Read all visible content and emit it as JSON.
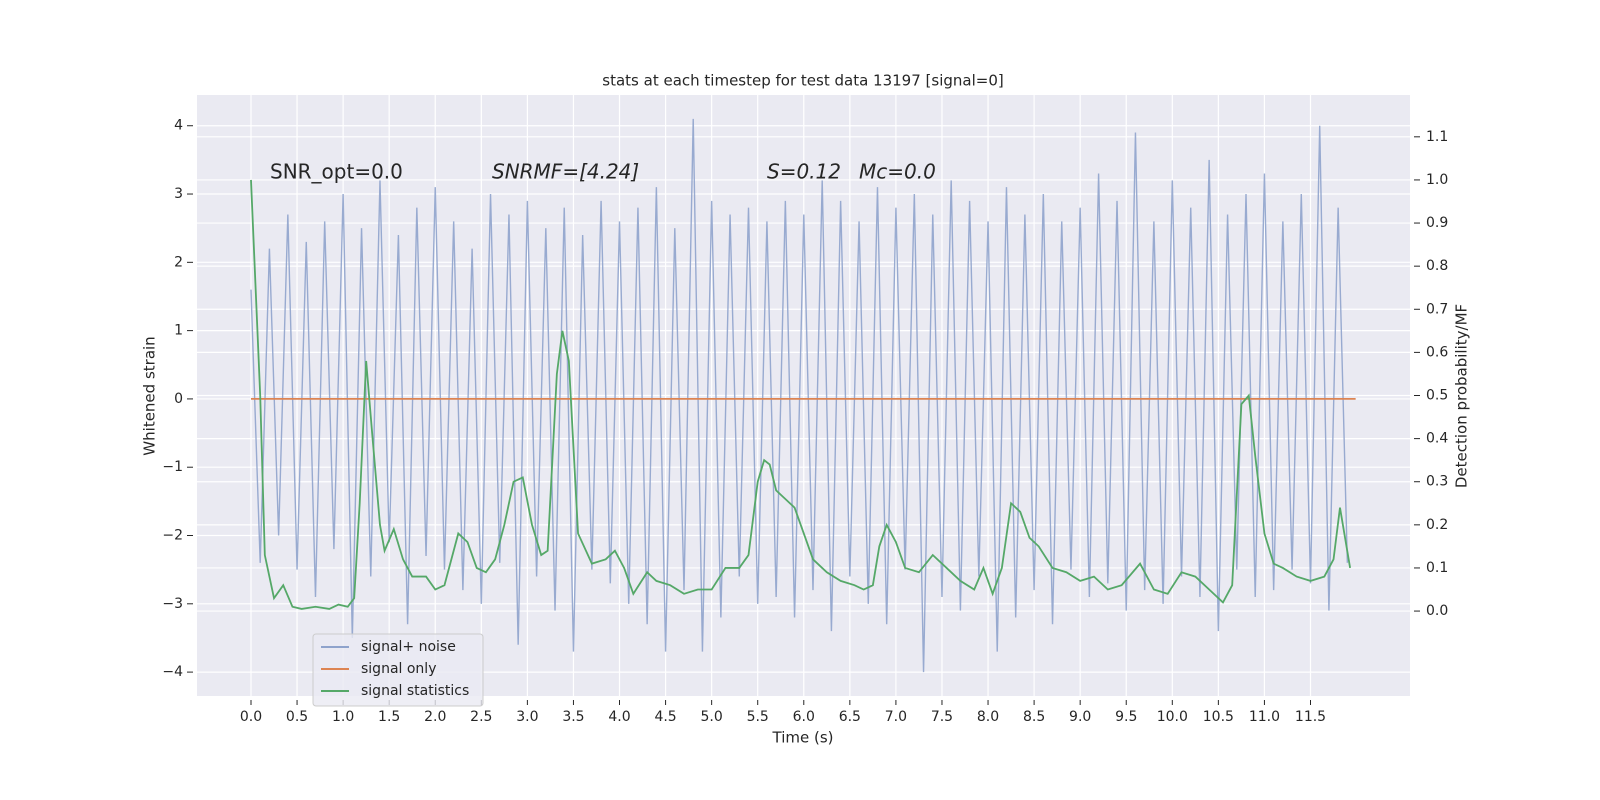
{
  "chart_data": {
    "type": "line",
    "title": "stats at each timestep for test data 13197 [signal=0]",
    "x_label": "Time (s)",
    "y_label": "Whitened strain",
    "y2_label": "Detection probability/MF",
    "annotations": [
      "SNR_opt=0.0",
      "SNRMF=[4.24]",
      "S=0.12",
      "Mc=0.0"
    ],
    "xlim": [
      -0.586,
      12.58
    ],
    "ylim": [
      -4.35,
      4.45
    ],
    "y2lim": [
      -0.197,
      1.197
    ],
    "xticks": [
      {
        "value": 0,
        "label": "0.0"
      },
      {
        "value": 0.5,
        "label": "0.5"
      },
      {
        "value": 1,
        "label": "1.0"
      },
      {
        "value": 1.5,
        "label": "1.5"
      },
      {
        "value": 2,
        "label": "2.0"
      },
      {
        "value": 2.5,
        "label": "2.5"
      },
      {
        "value": 3,
        "label": "3.0"
      },
      {
        "value": 3.5,
        "label": "3.5"
      },
      {
        "value": 4,
        "label": "4.0"
      },
      {
        "value": 4.5,
        "label": "4.5"
      },
      {
        "value": 5,
        "label": "5.0"
      },
      {
        "value": 5.5,
        "label": "5.5"
      },
      {
        "value": 6,
        "label": "6.0"
      },
      {
        "value": 6.5,
        "label": "6.5"
      },
      {
        "value": 7,
        "label": "7.0"
      },
      {
        "value": 7.5,
        "label": "7.5"
      },
      {
        "value": 8,
        "label": "8.0"
      },
      {
        "value": 8.5,
        "label": "8.5"
      },
      {
        "value": 9,
        "label": "9.0"
      },
      {
        "value": 9.5,
        "label": "9.5"
      },
      {
        "value": 10,
        "label": "10.0"
      },
      {
        "value": 10.5,
        "label": "10.5"
      },
      {
        "value": 11,
        "label": "11.0"
      },
      {
        "value": 11.5,
        "label": "11.5"
      }
    ],
    "yticks": [
      {
        "value": -4,
        "label": "−4"
      },
      {
        "value": -3,
        "label": "−3"
      },
      {
        "value": -2,
        "label": "−2"
      },
      {
        "value": -1,
        "label": "−1"
      },
      0,
      1,
      2,
      3,
      4
    ],
    "y2ticks": [
      {
        "value": 0,
        "label": "0.0"
      },
      {
        "value": 0.1,
        "label": "0.1"
      },
      {
        "value": 0.2,
        "label": "0.2"
      },
      {
        "value": 0.3,
        "label": "0.3"
      },
      {
        "value": 0.4,
        "label": "0.4"
      },
      {
        "value": 0.5,
        "label": "0.5"
      },
      {
        "value": 0.6,
        "label": "0.6"
      },
      {
        "value": 0.7,
        "label": "0.7"
      },
      {
        "value": 0.8,
        "label": "0.8"
      },
      {
        "value": 0.9,
        "label": "0.9"
      },
      {
        "value": 1,
        "label": "1.0"
      },
      {
        "value": 1.1,
        "label": "1.1"
      }
    ],
    "grid": true,
    "legend": "lower left",
    "series": [
      {
        "name": "signal+ noise",
        "color": "#8fa3cc",
        "axis": "y",
        "x": [
          0,
          0.1,
          0.2,
          0.3,
          0.4,
          0.5,
          0.6,
          0.7,
          0.8,
          0.9,
          1,
          1.1,
          1.2,
          1.3,
          1.4,
          1.5,
          1.6,
          1.7,
          1.8,
          1.9,
          2,
          2.1,
          2.2,
          2.3,
          2.4,
          2.5,
          2.6,
          2.7,
          2.8,
          2.9,
          3,
          3.1,
          3.2,
          3.3,
          3.4,
          3.5,
          3.6,
          3.7,
          3.8,
          3.9,
          4,
          4.1,
          4.2,
          4.3,
          4.4,
          4.5,
          4.6,
          4.7,
          4.8,
          4.9,
          5,
          5.1,
          5.2,
          5.3,
          5.4,
          5.5,
          5.6,
          5.7,
          5.8,
          5.9,
          6,
          6.1,
          6.2,
          6.3,
          6.4,
          6.5,
          6.6,
          6.7,
          6.8,
          6.9,
          7,
          7.1,
          7.2,
          7.3,
          7.4,
          7.5,
          7.6,
          7.7,
          7.8,
          7.9,
          8,
          8.1,
          8.2,
          8.3,
          8.4,
          8.5,
          8.6,
          8.7,
          8.8,
          8.9,
          9,
          9.1,
          9.2,
          9.3,
          9.4,
          9.5,
          9.6,
          9.7,
          9.8,
          9.9,
          10,
          10.1,
          10.2,
          10.3,
          10.4,
          10.5,
          10.6,
          10.7,
          10.8,
          10.9,
          11,
          11.1,
          11.2,
          11.3,
          11.4,
          11.5,
          11.6,
          11.7,
          11.8,
          11.9
        ],
        "values": [
          1.6,
          -2.4,
          2.2,
          -2.0,
          2.7,
          -2.5,
          2.3,
          -2.9,
          2.6,
          -2.2,
          3.0,
          -3.5,
          2.5,
          -2.6,
          3.2,
          -2.1,
          2.4,
          -3.3,
          2.8,
          -2.3,
          3.1,
          -2.5,
          2.6,
          -2.8,
          2.2,
          -3.0,
          3.0,
          -2.4,
          2.7,
          -3.6,
          2.9,
          -2.6,
          2.5,
          -3.1,
          2.8,
          -3.7,
          2.4,
          -2.5,
          2.9,
          -2.7,
          2.6,
          -3.0,
          2.8,
          -3.3,
          3.1,
          -3.7,
          2.5,
          -2.8,
          4.1,
          -3.7,
          2.9,
          -3.2,
          2.7,
          -2.6,
          2.8,
          -3.0,
          2.6,
          -2.9,
          2.9,
          -3.2,
          2.7,
          -2.8,
          3.2,
          -3.4,
          2.9,
          -2.6,
          2.6,
          -3.0,
          3.1,
          -3.3,
          2.8,
          -2.5,
          3.0,
          -4.0,
          2.7,
          -2.9,
          3.2,
          -3.1,
          2.9,
          -2.6,
          2.6,
          -3.7,
          3.1,
          -3.2,
          2.7,
          -2.8,
          3.0,
          -3.3,
          2.6,
          -2.5,
          2.8,
          -2.9,
          3.3,
          -2.7,
          2.9,
          -3.1,
          3.9,
          -2.8,
          2.6,
          -3.0,
          3.2,
          -2.6,
          2.8,
          -2.9,
          3.5,
          -3.4,
          2.7,
          -2.5,
          3.0,
          -2.9,
          3.3,
          -2.8,
          2.6,
          -2.5,
          3.0,
          -2.7,
          4.0,
          -3.1,
          2.8,
          -2.4
        ]
      },
      {
        "name": "signal only",
        "color": "#dd8452",
        "axis": "y",
        "x": [
          0,
          11.99
        ],
        "values": [
          0,
          0
        ]
      },
      {
        "name": "signal statistics",
        "color": "#55a868",
        "axis": "y2",
        "x": [
          0,
          0.1,
          0.15,
          0.25,
          0.35,
          0.45,
          0.55,
          0.7,
          0.85,
          0.95,
          1.05,
          1.12,
          1.18,
          1.25,
          1.32,
          1.4,
          1.45,
          1.55,
          1.65,
          1.75,
          1.9,
          2.0,
          2.1,
          2.25,
          2.35,
          2.45,
          2.55,
          2.65,
          2.75,
          2.85,
          2.95,
          3.05,
          3.15,
          3.22,
          3.32,
          3.38,
          3.45,
          3.55,
          3.7,
          3.85,
          3.95,
          4.05,
          4.15,
          4.3,
          4.4,
          4.55,
          4.7,
          4.85,
          5.0,
          5.15,
          5.3,
          5.4,
          5.5,
          5.57,
          5.63,
          5.7,
          5.8,
          5.9,
          6.0,
          6.1,
          6.25,
          6.4,
          6.55,
          6.65,
          6.75,
          6.82,
          6.9,
          7.0,
          7.1,
          7.25,
          7.4,
          7.55,
          7.7,
          7.85,
          7.95,
          8.05,
          8.15,
          8.25,
          8.35,
          8.45,
          8.55,
          8.7,
          8.85,
          9.0,
          9.15,
          9.3,
          9.45,
          9.65,
          9.8,
          9.95,
          10.1,
          10.25,
          10.4,
          10.55,
          10.65,
          10.75,
          10.83,
          10.9,
          11.0,
          11.1,
          11.2,
          11.35,
          11.5,
          11.65,
          11.75,
          11.82,
          11.93
        ],
        "values": [
          1.0,
          0.5,
          0.13,
          0.03,
          0.06,
          0.01,
          0.005,
          0.01,
          0.005,
          0.015,
          0.01,
          0.03,
          0.25,
          0.58,
          0.4,
          0.2,
          0.14,
          0.19,
          0.12,
          0.08,
          0.08,
          0.05,
          0.06,
          0.18,
          0.16,
          0.1,
          0.09,
          0.12,
          0.2,
          0.3,
          0.31,
          0.2,
          0.13,
          0.14,
          0.55,
          0.65,
          0.58,
          0.18,
          0.11,
          0.12,
          0.14,
          0.1,
          0.04,
          0.09,
          0.07,
          0.06,
          0.04,
          0.05,
          0.05,
          0.1,
          0.1,
          0.13,
          0.3,
          0.35,
          0.34,
          0.28,
          0.26,
          0.24,
          0.18,
          0.12,
          0.09,
          0.07,
          0.06,
          0.05,
          0.06,
          0.15,
          0.2,
          0.16,
          0.1,
          0.09,
          0.13,
          0.1,
          0.07,
          0.05,
          0.1,
          0.04,
          0.1,
          0.25,
          0.23,
          0.17,
          0.15,
          0.1,
          0.09,
          0.07,
          0.08,
          0.05,
          0.06,
          0.11,
          0.05,
          0.04,
          0.09,
          0.08,
          0.05,
          0.02,
          0.06,
          0.48,
          0.5,
          0.36,
          0.18,
          0.11,
          0.1,
          0.08,
          0.07,
          0.08,
          0.12,
          0.24,
          0.1
        ]
      }
    ]
  }
}
